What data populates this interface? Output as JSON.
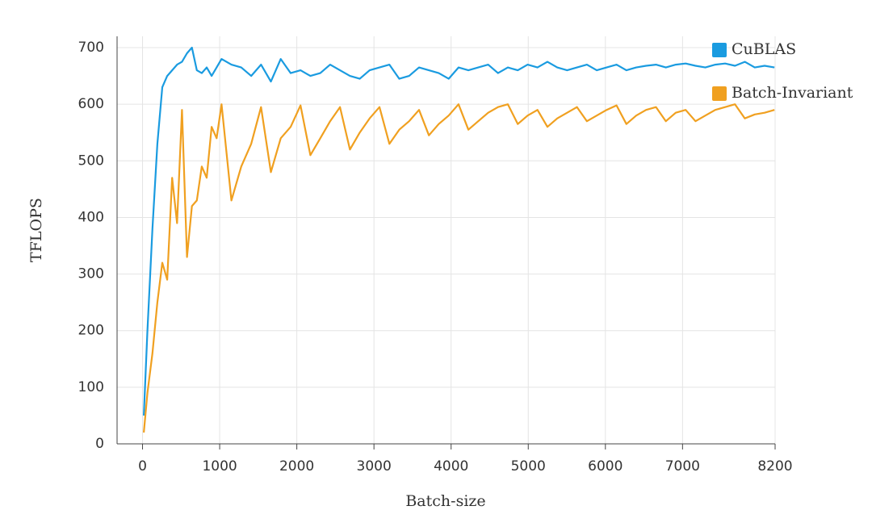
{
  "chart_data": {
    "type": "line",
    "xlabel": "Batch-size",
    "ylabel": "TFLOPS",
    "x": [
      16,
      64,
      128,
      192,
      256,
      320,
      384,
      448,
      512,
      576,
      640,
      704,
      768,
      832,
      896,
      960,
      1024,
      1152,
      1280,
      1408,
      1536,
      1664,
      1792,
      1920,
      2048,
      2176,
      2304,
      2432,
      2560,
      2688,
      2816,
      2944,
      3072,
      3200,
      3328,
      3456,
      3584,
      3712,
      3840,
      3968,
      4096,
      4224,
      4352,
      4480,
      4608,
      4736,
      4864,
      4992,
      5120,
      5248,
      5376,
      5504,
      5632,
      5760,
      5888,
      6016,
      6144,
      6272,
      6400,
      6528,
      6656,
      6784,
      6912,
      7040,
      7168,
      7296,
      7424,
      7552,
      7680,
      7808,
      7936,
      8064,
      8192
    ],
    "series": [
      {
        "name": "CuBLAS",
        "color": "#1a9be0",
        "values": [
          50,
          200,
          380,
          530,
          630,
          650,
          660,
          670,
          675,
          690,
          700,
          660,
          655,
          665,
          650,
          665,
          680,
          670,
          665,
          650,
          670,
          640,
          680,
          655,
          660,
          650,
          655,
          670,
          660,
          650,
          645,
          660,
          665,
          670,
          645,
          650,
          665,
          660,
          655,
          645,
          665,
          660,
          665,
          670,
          655,
          665,
          660,
          670,
          665,
          675,
          665,
          660,
          665,
          670,
          660,
          665,
          670,
          660,
          665,
          668,
          670,
          665,
          670,
          672,
          668,
          665,
          670,
          672,
          668,
          675,
          665,
          668,
          665
        ]
      },
      {
        "name": "Batch-Invariant",
        "color": "#f0a020",
        "values": [
          20,
          90,
          160,
          250,
          320,
          290,
          470,
          390,
          590,
          330,
          420,
          430,
          490,
          470,
          560,
          540,
          600,
          430,
          490,
          530,
          595,
          480,
          540,
          560,
          598,
          510,
          540,
          570,
          595,
          520,
          550,
          575,
          595,
          530,
          555,
          570,
          590,
          545,
          565,
          580,
          600,
          555,
          570,
          585,
          595,
          600,
          565,
          580,
          590,
          560,
          575,
          585,
          595,
          570,
          580,
          590,
          598,
          565,
          580,
          590,
          595,
          570,
          585,
          590,
          570,
          580,
          590,
          595,
          600,
          575,
          582,
          585,
          590
        ]
      }
    ],
    "xlim": [
      -330,
      8200
    ],
    "xticks": [
      0,
      1000,
      2000,
      3000,
      4000,
      5000,
      6000,
      7000,
      8200
    ],
    "ylim": [
      0,
      720
    ],
    "yticks": [
      0,
      100,
      200,
      300,
      400,
      500,
      600,
      700
    ],
    "grid": true,
    "legend": "upper right"
  }
}
